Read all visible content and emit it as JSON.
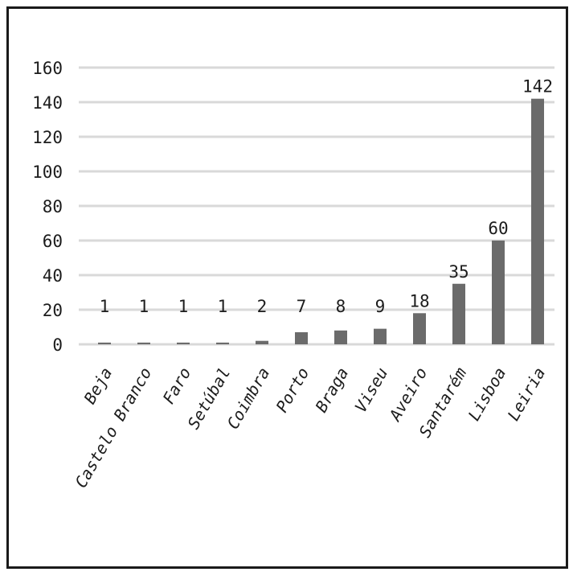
{
  "chart_data": {
    "type": "bar",
    "categories": [
      "Beja",
      "Castelo Branco",
      "Faro",
      "Setúbal",
      "Coimbra",
      "Porto",
      "Braga",
      "Viseu",
      "Aveiro",
      "Santarém",
      "Lisboa",
      "Leiria"
    ],
    "values": [
      1,
      1,
      1,
      1,
      2,
      7,
      8,
      9,
      18,
      35,
      60,
      142
    ],
    "ylim": [
      0,
      160
    ],
    "yticks": [
      0,
      20,
      40,
      60,
      80,
      100,
      120,
      140,
      160
    ],
    "grid": true,
    "legend": "none",
    "bar_color": "#6b6b6b",
    "grid_color": "#d9d9d9"
  }
}
